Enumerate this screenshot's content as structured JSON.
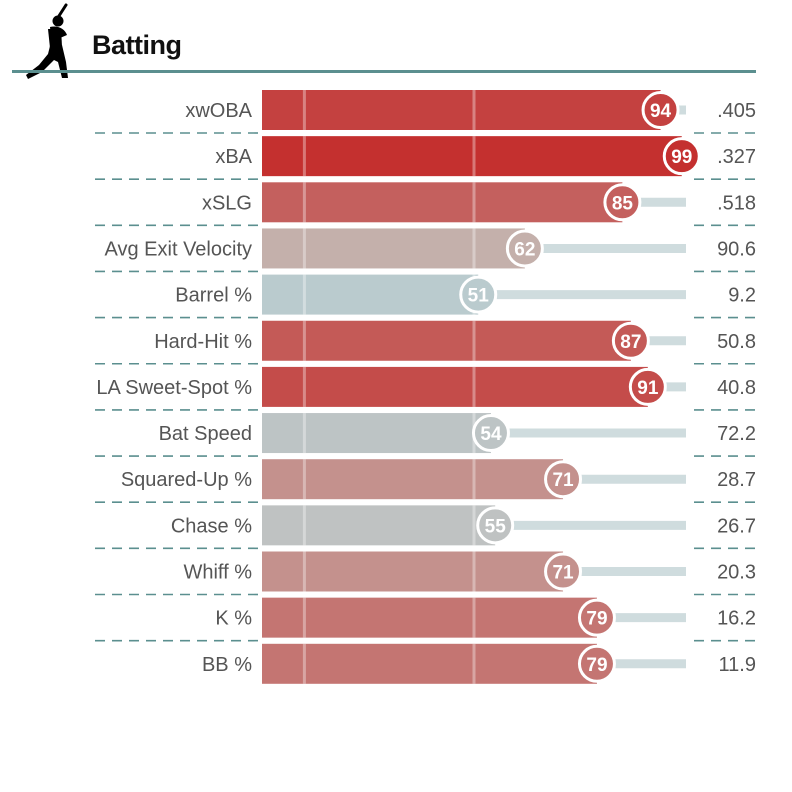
{
  "title": "Batting",
  "icon": "baseball-batter-icon",
  "colors": {
    "header_rule": "#5b8f8f",
    "divider": "#5b8f8f",
    "track": "#cfdcde",
    "low": "#b9cdd1",
    "mid": "#c4b7b2",
    "high": "#c4302f"
  },
  "chart_data": {
    "type": "bar",
    "orientation": "horizontal",
    "categories": [
      "xwOBA",
      "xBA",
      "xSLG",
      "Avg Exit Velocity",
      "Barrel %",
      "Hard-Hit %",
      "LA Sweet-Spot %",
      "Bat Speed",
      "Squared-Up %",
      "Chase %",
      "Whiff %",
      "K %",
      "BB %"
    ],
    "values": [
      94,
      99,
      85,
      62,
      51,
      87,
      91,
      54,
      71,
      55,
      71,
      79,
      79
    ],
    "stat_values": [
      ".405",
      ".327",
      ".518",
      "90.6",
      "9.2",
      "50.8",
      "40.8",
      "72.2",
      "28.7",
      "26.7",
      "20.3",
      "16.2",
      "11.9"
    ],
    "xlim": [
      0,
      100
    ],
    "reference_lines": [
      10,
      50
    ]
  }
}
